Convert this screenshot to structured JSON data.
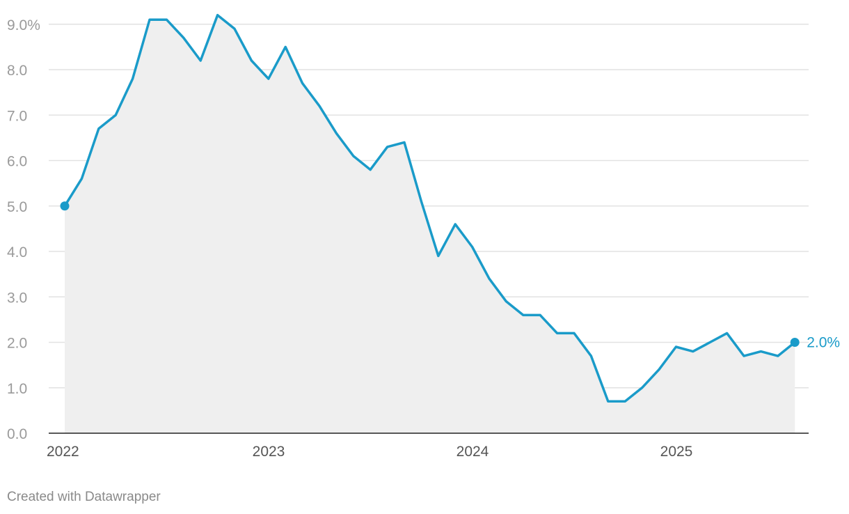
{
  "chart_data": {
    "type": "area",
    "title": "",
    "xlabel": "",
    "ylabel": "",
    "x_start": "2022-01",
    "x_ticks": [
      "2022",
      "2023",
      "2024",
      "2025"
    ],
    "y_ticks": [
      "9.0%",
      "8.0",
      "7.0",
      "6.0",
      "5.0",
      "4.0",
      "3.0",
      "2.0",
      "1.0",
      "0.0"
    ],
    "y_tick_values": [
      9,
      8,
      7,
      6,
      5,
      4,
      3,
      2,
      1,
      0
    ],
    "ylim": [
      0,
      9.2
    ],
    "grid": true,
    "series": [
      {
        "color": "#1a9bc9",
        "values": [
          5.0,
          5.6,
          6.7,
          7.0,
          7.8,
          9.1,
          9.1,
          8.7,
          8.2,
          9.2,
          8.9,
          8.2,
          7.8,
          8.5,
          7.7,
          7.2,
          6.6,
          6.1,
          5.8,
          6.3,
          6.4,
          5.1,
          3.9,
          4.6,
          4.1,
          3.4,
          2.9,
          2.6,
          2.6,
          2.2,
          2.2,
          1.7,
          0.7,
          0.7,
          1.0,
          1.4,
          1.9,
          1.8,
          2.0,
          2.2,
          1.7,
          1.8,
          1.7,
          2.0
        ]
      }
    ],
    "end_label": "2.0%",
    "fill_color": "#efefef",
    "grid_color": "#e2e2e2"
  },
  "footer": {
    "credit": "Created with Datawrapper"
  }
}
